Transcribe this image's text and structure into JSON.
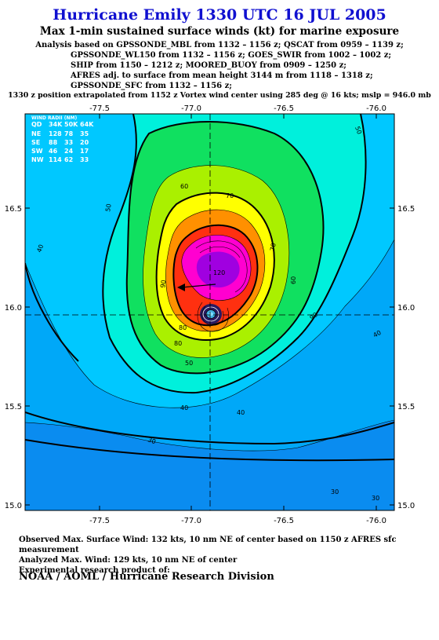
{
  "title": "Hurricane Emily 1330 UTC 16 JUL 2005",
  "subtitle": "Max 1-min sustained surface winds (kt) for marine exposure",
  "analysis_lines": [
    "Analysis based on  GPSSONDE_MBL from 1132 – 1156 z;  QSCAT from 0959 – 1139 z;",
    "GPSSONDE_WL150 from 1132 – 1156 z;  GOES_SWIR from 1002 – 1002 z;",
    "SHIP from 1150 – 1212 z;  MOORED_BUOY from 0909 – 1250 z;",
    "AFRES adj. to surface from mean height 3144 m from 1118 – 1318 z;",
    "GPSSONDE_SFC from 1132 – 1156 z;"
  ],
  "position_line": "1330 z position extrapolated from 1152 z Vortex wind center using 285 deg @ 16 kts; mslp = 946.0 mb",
  "map": {
    "x_ticks": [
      "-77.5",
      "-77.0",
      "-76.5",
      "-76.0"
    ],
    "y_ticks": [
      "16.5",
      "16.0",
      "15.5",
      "15.0"
    ],
    "contour_labels": [
      "50",
      "60",
      "70",
      "80",
      "90",
      "120",
      "40",
      "30"
    ],
    "wind_radii": {
      "header": "WIND RADII (NM)",
      "columns": [
        "QD",
        "34K",
        "50K",
        "64K"
      ],
      "rows": [
        [
          "NE",
          "128",
          "78",
          "35"
        ],
        [
          "SE",
          "88",
          "33",
          "20"
        ],
        [
          "SW",
          "46",
          "24",
          "17"
        ],
        [
          "NW",
          "114",
          "62",
          "33"
        ]
      ]
    },
    "colors": {
      "outer_blue": "#0a8cf0",
      "cyan": "#00c8ff",
      "aqua": "#00f0dc",
      "green": "#10e060",
      "lime": "#aaf000",
      "yellow": "#ffff00",
      "orange": "#ff9000",
      "red": "#ff3010",
      "magenta": "#ff00d0",
      "purple": "#a000e0"
    }
  },
  "footer_lines": [
    "Observed Max. Surface Wind: 132 kts, 10 nm NE of center based on 1150 z AFRES sfc measurement",
    "Analyzed Max. Wind: 129 kts, 10 nm NE of center",
    "Experimental research product of:"
  ],
  "org": "NOAA / AOML / Hurricane Research Division"
}
